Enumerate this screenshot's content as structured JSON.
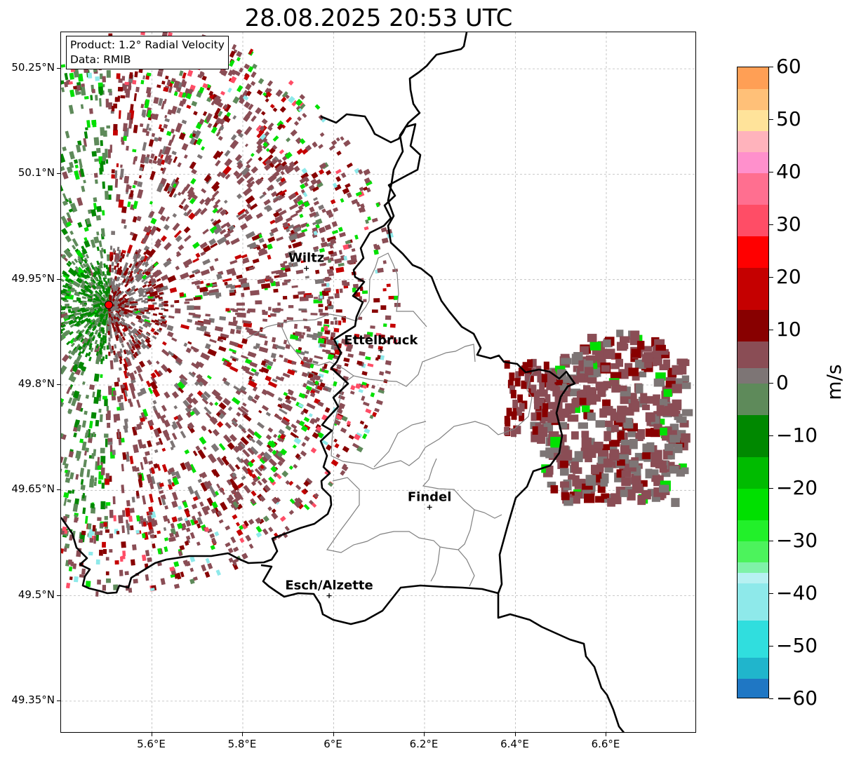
{
  "title": "28.08.2025 20:53 UTC",
  "info": {
    "product": "Product: 1.2° Radial Velocity",
    "data_source": "Data: RMIB"
  },
  "map": {
    "lat_labels": [
      "50.25°N",
      "50.1°N",
      "49.95°N",
      "49.8°N",
      "49.65°N",
      "49.5°N",
      "49.35°N"
    ],
    "lon_labels": [
      "5.6°E",
      "5.8°E",
      "6°E",
      "6.2°E",
      "6.4°E",
      "6.6°E"
    ],
    "places": [
      {
        "name": "Wiltz",
        "lon": 5.94,
        "lat": 49.966
      },
      {
        "name": "Ettelbruck",
        "lon": 6.104,
        "lat": 49.849
      },
      {
        "name": "Findel",
        "lon": 6.211,
        "lat": 49.626
      },
      {
        "name": "Esch/Alzette",
        "lon": 5.99,
        "lat": 49.5
      }
    ],
    "radar_site": {
      "lon": 5.505,
      "lat": 49.914
    },
    "colors": {
      "radar_marker": "#ff0000",
      "border": "#000000",
      "admin_lines": "#808080",
      "grid": "#b0b0b0"
    }
  },
  "colorbar": {
    "unit": "m/s",
    "min": -60,
    "max": 60,
    "tick_labels": [
      "60",
      "50",
      "40",
      "30",
      "20",
      "10",
      "0",
      "−10",
      "−20",
      "−30",
      "−40",
      "−50",
      "−60"
    ],
    "stops": [
      {
        "from": -60,
        "to": -56,
        "color": "#1f77c4"
      },
      {
        "from": -56,
        "to": -52,
        "color": "#20b5cc"
      },
      {
        "from": -52,
        "to": -45,
        "color": "#30dede"
      },
      {
        "from": -45,
        "to": -38,
        "color": "#8ee9ea"
      },
      {
        "from": -38,
        "to": -36,
        "color": "#b7f1f2"
      },
      {
        "from": -36,
        "to": -34,
        "color": "#7ff2a8"
      },
      {
        "from": -34,
        "to": -30,
        "color": "#4cf35c"
      },
      {
        "from": -30,
        "to": -26,
        "color": "#22f02a"
      },
      {
        "from": -26,
        "to": -20,
        "color": "#00e000"
      },
      {
        "from": -20,
        "to": -14,
        "color": "#00bb00"
      },
      {
        "from": -14,
        "to": -6,
        "color": "#008800"
      },
      {
        "from": -6,
        "to": 0,
        "color": "#5e8a5a"
      },
      {
        "from": 0,
        "to": 3,
        "color": "#7d7575"
      },
      {
        "from": 3,
        "to": 8,
        "color": "#8a4d55"
      },
      {
        "from": 8,
        "to": 14,
        "color": "#880000"
      },
      {
        "from": 14,
        "to": 22,
        "color": "#c50000"
      },
      {
        "from": 22,
        "to": 28,
        "color": "#ff0000"
      },
      {
        "from": 28,
        "to": 34,
        "color": "#ff4d66"
      },
      {
        "from": 34,
        "to": 40,
        "color": "#ff6f90"
      },
      {
        "from": 40,
        "to": 44,
        "color": "#ff90cc"
      },
      {
        "from": 44,
        "to": 48,
        "color": "#ffb3bc"
      },
      {
        "from": 48,
        "to": 52,
        "color": "#ffe39a"
      },
      {
        "from": 52,
        "to": 56,
        "color": "#ffc078"
      },
      {
        "from": 56,
        "to": 60,
        "color": "#ff9f55"
      }
    ]
  }
}
